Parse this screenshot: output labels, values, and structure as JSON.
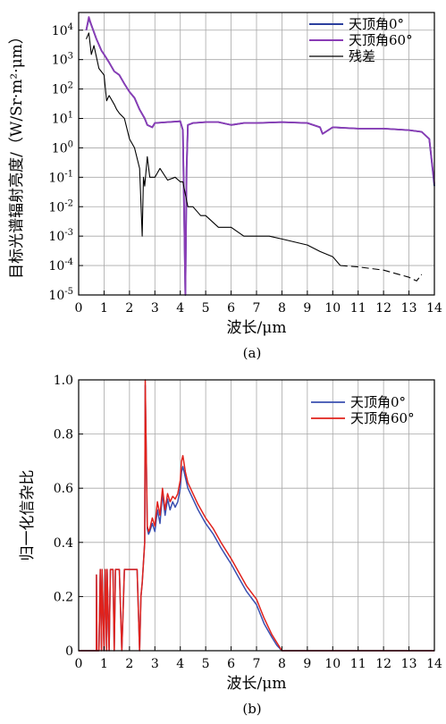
{
  "chart_data": [
    {
      "type": "line",
      "panel_label": "(a)",
      "xlabel": "波长/μm",
      "ylabel": "目标光谱辐射亮度/（W/Sr·m²·μm）",
      "xlim": [
        0,
        14
      ],
      "ylim_log10": [
        -5,
        4.6
      ],
      "y_scale": "log",
      "grid": true,
      "legend_position": "top-right",
      "x_ticks": [
        "0",
        "1",
        "2",
        "3",
        "4",
        "5",
        "6",
        "7",
        "8",
        "9",
        "10",
        "11",
        "12",
        "13",
        "14"
      ],
      "y_ticks": [
        {
          "base": "10",
          "exp": "4"
        },
        {
          "base": "10",
          "exp": "3"
        },
        {
          "base": "10",
          "exp": "2"
        },
        {
          "base": "10",
          "exp": "1"
        },
        {
          "base": "10",
          "exp": "0"
        },
        {
          "base": "10",
          "exp": "-1"
        },
        {
          "base": "10",
          "exp": "-2"
        },
        {
          "base": "10",
          "exp": "-3"
        },
        {
          "base": "10",
          "exp": "-4"
        },
        {
          "base": "10",
          "exp": "-5"
        }
      ],
      "series": [
        {
          "name": "天顶角0°",
          "color": "#2b3f9e",
          "x": [
            0.3,
            0.4,
            0.5,
            0.7,
            0.9,
            1.0,
            1.2,
            1.4,
            1.6,
            1.8,
            2.0,
            2.2,
            2.4,
            2.6,
            2.7,
            2.9,
            3.0,
            3.5,
            4.0,
            4.1,
            4.2,
            4.25,
            4.3,
            4.5,
            5.0,
            5.5,
            6.0,
            6.5,
            7.0,
            8.0,
            9.0,
            9.5,
            9.6,
            10.0,
            11.0,
            12.0,
            13.0,
            13.5,
            13.8,
            14.0
          ],
          "y": [
            10000,
            25000,
            15000,
            5000,
            2000,
            1500,
            800,
            400,
            300,
            150,
            80,
            50,
            20,
            10,
            6,
            5,
            7,
            7.5,
            8,
            4,
            1e-05,
            0.2,
            6,
            7,
            7.5,
            7.5,
            6,
            7,
            7,
            7.5,
            7,
            5,
            3,
            5,
            4.5,
            4.5,
            4,
            3.5,
            2,
            0.05
          ]
        },
        {
          "name": "天顶角60°",
          "color": "#8a3cb5",
          "x": [
            0.3,
            0.4,
            0.5,
            0.7,
            0.9,
            1.0,
            1.2,
            1.4,
            1.6,
            1.8,
            2.0,
            2.2,
            2.4,
            2.6,
            2.7,
            2.9,
            3.0,
            3.5,
            4.0,
            4.1,
            4.2,
            4.25,
            4.3,
            4.5,
            5.0,
            5.5,
            6.0,
            6.5,
            7.0,
            8.0,
            9.0,
            9.5,
            9.6,
            10.0,
            11.0,
            12.0,
            13.0,
            13.5,
            13.8,
            14.0
          ],
          "y": [
            10000,
            28000,
            15000,
            5000,
            2000,
            1500,
            800,
            400,
            300,
            150,
            80,
            50,
            20,
            10,
            6,
            5,
            7,
            7.5,
            8,
            4,
            1e-05,
            0.2,
            6,
            7,
            7.5,
            7.5,
            6,
            7,
            7,
            7.5,
            7,
            5,
            3,
            5,
            4.5,
            4.5,
            4,
            3.5,
            2,
            0.06
          ]
        },
        {
          "name": "残差",
          "color": "#000000",
          "x": [
            0.3,
            0.4,
            0.5,
            0.6,
            0.8,
            1.0,
            1.1,
            1.2,
            1.4,
            1.5,
            1.6,
            1.8,
            2.0,
            2.2,
            2.4,
            2.5,
            2.55,
            2.6,
            2.7,
            2.8,
            3.0,
            3.2,
            3.5,
            3.8,
            4.0,
            4.1,
            4.3,
            4.5,
            4.8,
            5.0,
            5.5,
            6.0,
            6.5,
            7.0,
            7.5,
            8.0,
            9.0,
            9.5,
            10.0,
            10.3
          ],
          "y": [
            5000,
            8000,
            1500,
            3000,
            500,
            300,
            40,
            60,
            30,
            20,
            15,
            10,
            2,
            1,
            0.2,
            0.001,
            0.1,
            0.05,
            0.5,
            0.1,
            0.1,
            0.2,
            0.08,
            0.1,
            0.07,
            0.07,
            0.01,
            0.01,
            0.005,
            0.005,
            0.002,
            0.002,
            0.001,
            0.001,
            0.001,
            0.0008,
            0.0005,
            0.0003,
            0.0002,
            0.0001
          ]
        },
        {
          "name": "",
          "color": "#000000",
          "style": "dashed",
          "x": [
            10.3,
            11,
            12,
            13,
            13.3,
            13.5
          ],
          "y": [
            0.0001,
            9e-05,
            7e-05,
            4e-05,
            3e-05,
            5e-05
          ]
        }
      ]
    },
    {
      "type": "line",
      "panel_label": "(b)",
      "xlabel": "波长/μm",
      "ylabel": "归一化信杂比",
      "xlim": [
        0,
        14
      ],
      "ylim": [
        0,
        1.0
      ],
      "grid": true,
      "legend_position": "top-right",
      "x_ticks": [
        "0",
        "1",
        "2",
        "3",
        "4",
        "5",
        "6",
        "7",
        "8",
        "9",
        "10",
        "11",
        "12",
        "13",
        "14"
      ],
      "y_ticks": [
        "0",
        "0.2",
        "0.4",
        "0.6",
        "0.8",
        "1.0"
      ],
      "series": [
        {
          "name": "天顶角0°",
          "color": "#3a4fb0",
          "x": [
            0,
            0.7,
            0.7,
            0.72,
            0.8,
            0.85,
            0.9,
            0.92,
            1.0,
            1.05,
            1.1,
            1.12,
            1.2,
            1.25,
            1.35,
            1.4,
            1.45,
            1.5,
            1.6,
            1.7,
            1.8,
            1.9,
            2.0,
            2.3,
            2.4,
            2.45,
            2.5,
            2.6,
            2.62,
            2.65,
            2.7,
            2.75,
            2.8,
            2.9,
            3.0,
            3.1,
            3.2,
            3.3,
            3.4,
            3.5,
            3.6,
            3.7,
            3.8,
            3.9,
            4.0,
            4.05,
            4.1,
            4.2,
            4.3,
            4.5,
            4.7,
            5.0,
            5.3,
            5.6,
            6.0,
            6.3,
            6.6,
            7.0,
            7.3,
            7.6,
            7.8,
            8.0,
            9,
            10,
            11,
            12,
            13,
            14
          ],
          "y": [
            0,
            0,
            0.28,
            0,
            0,
            0.3,
            0,
            0.3,
            0,
            0.3,
            0,
            0.3,
            0,
            0.3,
            0.3,
            0,
            0.3,
            0.3,
            0.3,
            0,
            0.3,
            0.3,
            0.3,
            0.3,
            0,
            0.2,
            0.25,
            0.4,
            0.98,
            0.8,
            0.45,
            0.43,
            0.44,
            0.47,
            0.44,
            0.52,
            0.47,
            0.58,
            0.5,
            0.56,
            0.52,
            0.55,
            0.53,
            0.55,
            0.6,
            0.66,
            0.68,
            0.64,
            0.6,
            0.56,
            0.52,
            0.47,
            0.43,
            0.38,
            0.32,
            0.27,
            0.22,
            0.17,
            0.1,
            0.05,
            0.02,
            0,
            0,
            0,
            0,
            0,
            0,
            0
          ]
        },
        {
          "name": "天顶角60°",
          "color": "#e0221c",
          "x": [
            0,
            0.7,
            0.7,
            0.72,
            0.8,
            0.85,
            0.9,
            0.92,
            1.0,
            1.05,
            1.1,
            1.12,
            1.2,
            1.25,
            1.35,
            1.4,
            1.45,
            1.5,
            1.6,
            1.7,
            1.8,
            1.9,
            2.0,
            2.3,
            2.4,
            2.45,
            2.5,
            2.6,
            2.62,
            2.65,
            2.7,
            2.75,
            2.8,
            2.9,
            3.0,
            3.1,
            3.2,
            3.3,
            3.4,
            3.5,
            3.6,
            3.7,
            3.8,
            3.9,
            4.0,
            4.05,
            4.1,
            4.2,
            4.3,
            4.5,
            4.7,
            5.0,
            5.3,
            5.6,
            6.0,
            6.3,
            6.6,
            7.0,
            7.3,
            7.6,
            7.8,
            8.0,
            9,
            10,
            11,
            12,
            13,
            14
          ],
          "y": [
            0,
            0,
            0.28,
            0,
            0,
            0.3,
            0,
            0.3,
            0,
            0.3,
            0,
            0.3,
            0,
            0.3,
            0.3,
            0,
            0.3,
            0.3,
            0.3,
            0,
            0.3,
            0.3,
            0.3,
            0.3,
            0,
            0.2,
            0.25,
            0.4,
            1.0,
            0.8,
            0.46,
            0.44,
            0.45,
            0.49,
            0.46,
            0.55,
            0.5,
            0.6,
            0.52,
            0.58,
            0.55,
            0.57,
            0.56,
            0.58,
            0.63,
            0.7,
            0.72,
            0.66,
            0.62,
            0.58,
            0.54,
            0.49,
            0.45,
            0.4,
            0.34,
            0.29,
            0.24,
            0.19,
            0.12,
            0.06,
            0.03,
            0,
            0,
            0,
            0,
            0,
            0,
            0
          ]
        }
      ]
    }
  ]
}
